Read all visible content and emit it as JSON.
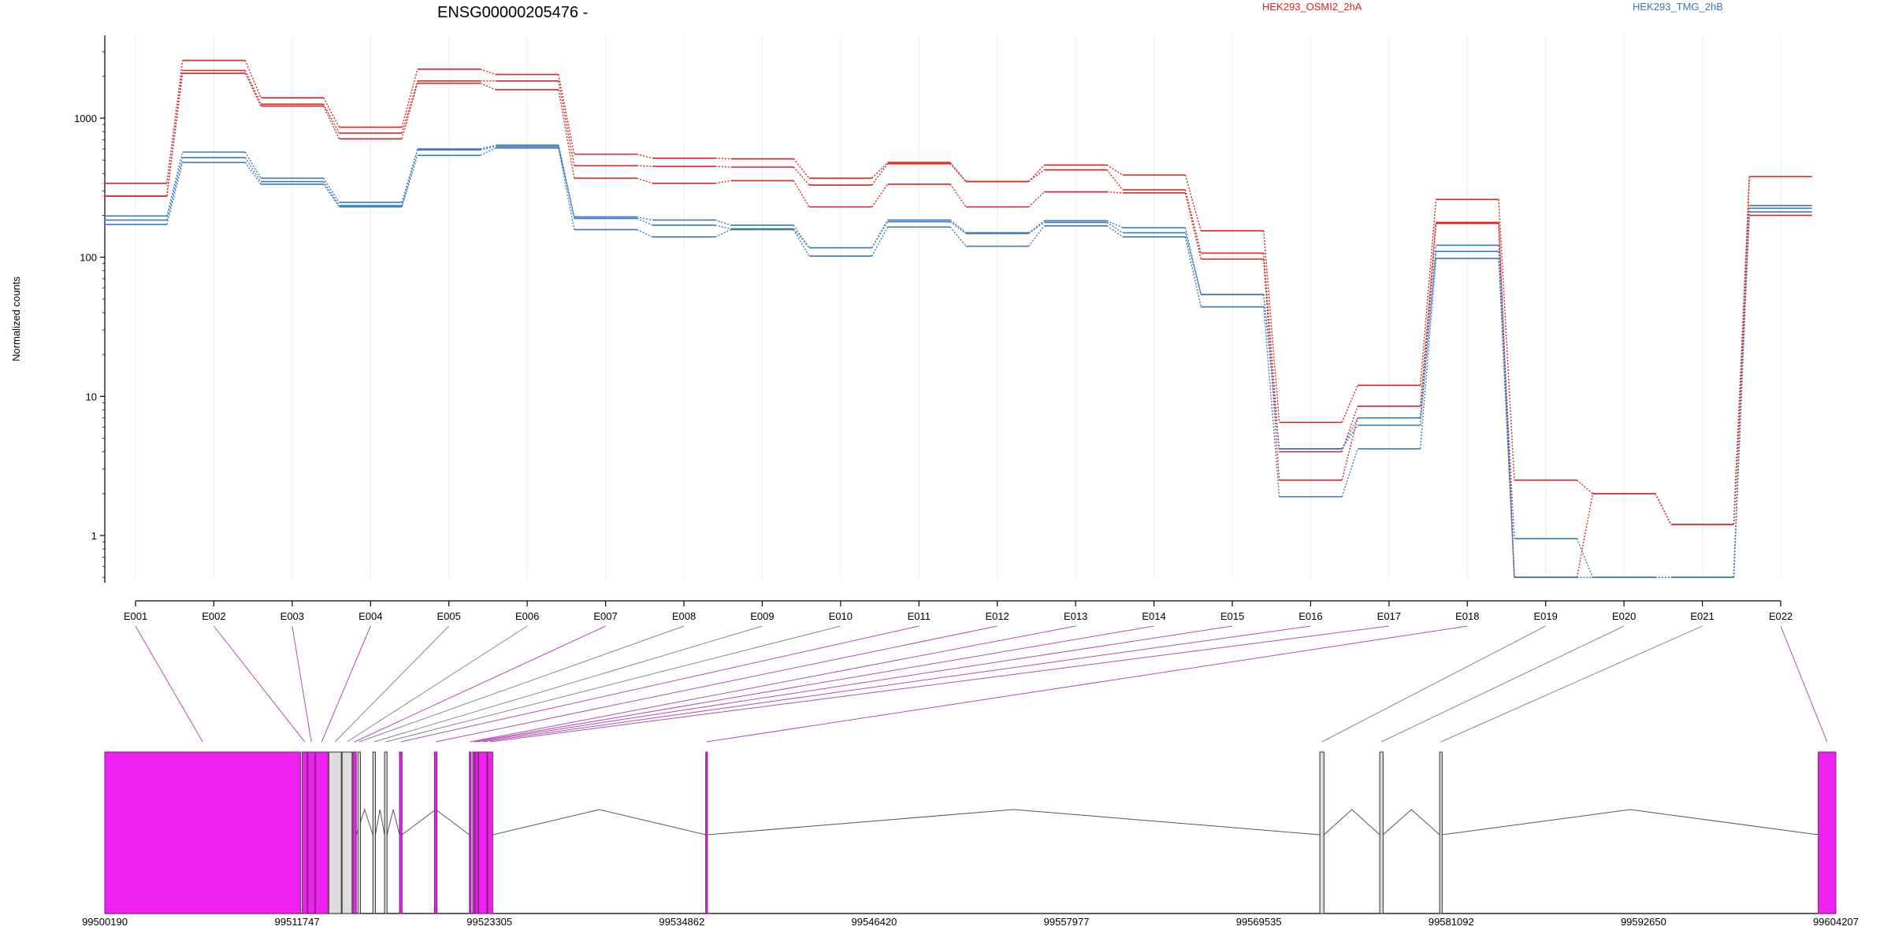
{
  "chart_data": {
    "type": "line",
    "title": "ENSG00000205476 -",
    "ylabel": "Normalized counts",
    "xlabel": "",
    "yscale": "log",
    "ylim": [
      0.5,
      3200
    ],
    "yticks": [
      {
        "value": 1,
        "label": "1"
      },
      {
        "value": 10,
        "label": "10"
      },
      {
        "value": 100,
        "label": "100"
      },
      {
        "value": 1000,
        "label": "1000"
      }
    ],
    "grid": true,
    "legend_position": "top",
    "legend": [
      {
        "name": "HEK293_OSMI2_2hA",
        "color": "#dd2222"
      },
      {
        "name": "HEK293_TMG_2hB",
        "color": "#3a7ab8"
      }
    ],
    "categories": [
      "E001",
      "E002",
      "E003",
      "E004",
      "E005",
      "E006",
      "E007",
      "E008",
      "E009",
      "E010",
      "E011",
      "E012",
      "E013",
      "E014",
      "E015",
      "E016",
      "E017",
      "E018",
      "E019",
      "E020",
      "E021",
      "E022"
    ],
    "series": [
      {
        "group": 0,
        "color": "#dd2222",
        "values": [
          340,
          2600,
          1400,
          860,
          2250,
          2060,
          550,
          515,
          510,
          370,
          480,
          350,
          460,
          390,
          155,
          6.5,
          12,
          260,
          2.5,
          2.0,
          1.2,
          380
        ]
      },
      {
        "group": 0,
        "color": "#dd2222",
        "values": [
          275,
          2200,
          1260,
          780,
          1850,
          1850,
          455,
          450,
          445,
          330,
          470,
          350,
          425,
          305,
          107,
          4.0,
          8.5,
          178,
          0.5,
          0.5,
          0.5,
          380
        ]
      },
      {
        "group": 0,
        "color": "#dd2222",
        "values": [
          275,
          2100,
          1220,
          710,
          1780,
          1600,
          370,
          340,
          355,
          230,
          335,
          230,
          295,
          290,
          97,
          2.5,
          7.0,
          175,
          0.5,
          2.0,
          1.2,
          200
        ]
      },
      {
        "group": 1,
        "color": "#3a7ab8",
        "values": [
          198,
          570,
          370,
          248,
          600,
          640,
          195,
          185,
          170,
          117,
          185,
          150,
          183,
          163,
          54,
          4.2,
          7.0,
          122,
          0.95,
          0.5,
          0.5,
          235
        ]
      },
      {
        "group": 1,
        "color": "#3a7ab8",
        "values": [
          185,
          520,
          350,
          235,
          590,
          625,
          190,
          170,
          160,
          117,
          180,
          148,
          178,
          150,
          54,
          4.2,
          6.2,
          110,
          0.5,
          0.5,
          0.5,
          225
        ]
      },
      {
        "group": 1,
        "color": "#3a7ab8",
        "values": [
          172,
          480,
          335,
          230,
          540,
          610,
          158,
          140,
          158,
          102,
          165,
          120,
          168,
          140,
          44,
          1.9,
          4.2,
          98,
          0.5,
          0.5,
          0.5,
          212
        ]
      }
    ],
    "genome": {
      "start": 99500190,
      "end": 99604207,
      "tick_labels": [
        "99500190",
        "99511747",
        "99523305",
        "99534862",
        "99546420",
        "99557977",
        "99569535",
        "99581092",
        "99592650",
        "99604207"
      ],
      "exons": [
        {
          "id": "E001",
          "start": 99500190,
          "end": 99511950,
          "color": "#ee22ee"
        },
        {
          "id": "E002",
          "start": 99512050,
          "end": 99512350,
          "color": "#ee22ee"
        },
        {
          "id": "E003",
          "start": 99512400,
          "end": 99512800,
          "color": "#ee22ee"
        },
        {
          "id": "E004",
          "start": 99512850,
          "end": 99513600,
          "color": "#ee22ee"
        },
        {
          "id": "E005",
          "start": 99513650,
          "end": 99514400,
          "color": "#dddddd"
        },
        {
          "id": "E006",
          "start": 99514450,
          "end": 99515050,
          "color": "#dddddd"
        },
        {
          "id": "E007",
          "start": 99515100,
          "end": 99515300,
          "color": "#ee22ee"
        },
        {
          "id": "E008",
          "start": 99515400,
          "end": 99515550,
          "color": "#dddddd"
        },
        {
          "id": "E009",
          "start": 99516300,
          "end": 99516450,
          "color": "#dddddd"
        },
        {
          "id": "E010",
          "start": 99517000,
          "end": 99517150,
          "color": "#dddddd"
        },
        {
          "id": "E011",
          "start": 99517900,
          "end": 99518050,
          "color": "#ee22ee"
        },
        {
          "id": "E012",
          "start": 99520000,
          "end": 99520150,
          "color": "#ee22ee"
        },
        {
          "id": "E013",
          "start": 99522100,
          "end": 99522200,
          "color": "#ee22ee"
        },
        {
          "id": "E014",
          "start": 99522300,
          "end": 99522400,
          "color": "#ee22ee"
        },
        {
          "id": "E015",
          "start": 99522450,
          "end": 99522600,
          "color": "#ee22ee"
        },
        {
          "id": "E016",
          "start": 99522650,
          "end": 99523150,
          "color": "#ee22ee"
        },
        {
          "id": "E017",
          "start": 99523200,
          "end": 99523500,
          "color": "#ee22ee"
        },
        {
          "id": "E018",
          "start": 99536300,
          "end": 99536400,
          "color": "#ee22ee"
        },
        {
          "id": "E019",
          "start": 99573200,
          "end": 99573450,
          "color": "#dddddd"
        },
        {
          "id": "E020",
          "start": 99576800,
          "end": 99577000,
          "color": "#dddddd"
        },
        {
          "id": "E021",
          "start": 99580400,
          "end": 99580550,
          "color": "#dddddd"
        },
        {
          "id": "E022",
          "start": 99603150,
          "end": 99604207,
          "color": "#ee22ee"
        }
      ],
      "introns": [
        [
          99515300,
          99516300
        ],
        [
          99516450,
          99517000
        ],
        [
          99517150,
          99517900
        ],
        [
          99518050,
          99522100
        ],
        [
          99523500,
          99536300
        ],
        [
          99536400,
          99573200
        ],
        [
          99573450,
          99576800
        ],
        [
          99577000,
          99580400
        ],
        [
          99580550,
          99603150
        ]
      ]
    }
  }
}
